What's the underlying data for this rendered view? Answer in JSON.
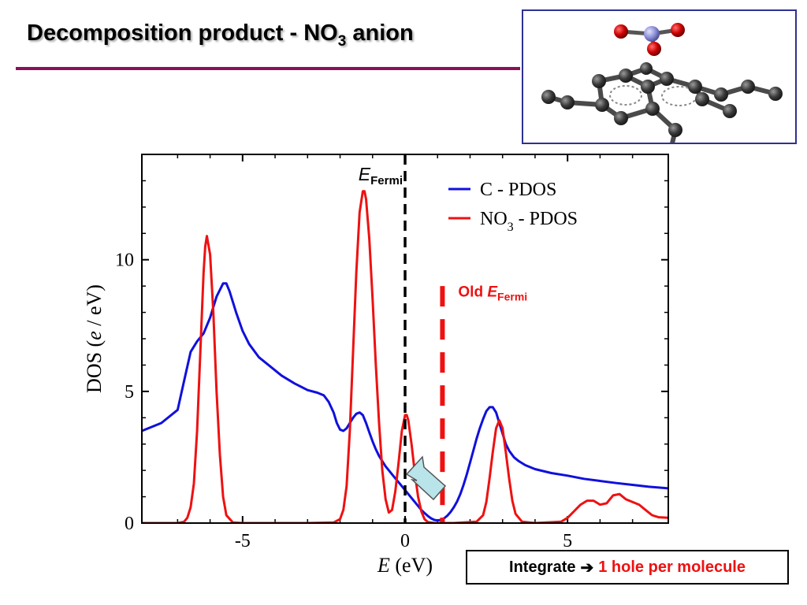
{
  "slide": {
    "title_main": "Decomposition product - NO",
    "title_sub": "3",
    "title_tail": " anion"
  },
  "molecule": {
    "atom_colors": {
      "carbon": "#3a3a3a",
      "nitrogen": "#8c8fd6",
      "oxygen": "#cc0000"
    }
  },
  "summary": {
    "lead": "Integrate",
    "arrow": "➔",
    "result": "1 hole per molecule"
  },
  "chart_data": {
    "type": "line",
    "xlabel_italic": "E",
    "xlabel_rest": " (eV)",
    "ylabel_pre": "DOS (",
    "ylabel_italic": "e",
    "ylabel_post": " / eV)",
    "xlim": [
      -8.1,
      8.1
    ],
    "ylim": [
      0,
      14
    ],
    "x_ticks": [
      -5,
      0,
      5
    ],
    "x_tick_labels": [
      "-5",
      "0",
      "5"
    ],
    "y_ticks": [
      0,
      5,
      10
    ],
    "y_tick_labels": [
      "0",
      "5",
      "10"
    ],
    "legend_position": "top-right",
    "series": [
      {
        "name_main": "C - PDOS",
        "color": "#1010dd",
        "x": [
          -8.1,
          -7.5,
          -7.0,
          -6.8,
          -6.6,
          -6.4,
          -6.2,
          -6.0,
          -5.8,
          -5.6,
          -5.5,
          -5.4,
          -5.2,
          -5.0,
          -4.8,
          -4.5,
          -4.2,
          -3.8,
          -3.4,
          -3.0,
          -2.7,
          -2.5,
          -2.35,
          -2.2,
          -2.1,
          -2.0,
          -1.9,
          -1.8,
          -1.7,
          -1.6,
          -1.5,
          -1.4,
          -1.3,
          -1.2,
          -1.1,
          -1.0,
          -0.9,
          -0.8,
          -0.7,
          -0.6,
          -0.5,
          -0.4,
          -0.3,
          -0.2,
          -0.1,
          0.0,
          0.1,
          0.2,
          0.3,
          0.4,
          0.5,
          0.6,
          0.7,
          0.8,
          0.9,
          1.0,
          1.1,
          1.2,
          1.3,
          1.4,
          1.5,
          1.6,
          1.7,
          1.8,
          1.9,
          2.0,
          2.1,
          2.2,
          2.3,
          2.4,
          2.5,
          2.6,
          2.7,
          2.8,
          2.9,
          3.0,
          3.1,
          3.2,
          3.35,
          3.5,
          3.7,
          4.0,
          4.5,
          5.0,
          5.5,
          6.0,
          6.5,
          7.0,
          7.5,
          8.1
        ],
        "y": [
          3.5,
          3.8,
          4.3,
          5.4,
          6.5,
          6.9,
          7.2,
          7.8,
          8.6,
          9.1,
          9.1,
          8.8,
          8.0,
          7.3,
          6.8,
          6.3,
          6.0,
          5.6,
          5.3,
          5.05,
          4.95,
          4.85,
          4.6,
          4.2,
          3.8,
          3.55,
          3.5,
          3.6,
          3.8,
          4.0,
          4.15,
          4.2,
          4.1,
          3.8,
          3.45,
          3.1,
          2.8,
          2.55,
          2.35,
          2.15,
          2.0,
          1.85,
          1.7,
          1.55,
          1.4,
          1.25,
          1.1,
          0.95,
          0.8,
          0.65,
          0.5,
          0.38,
          0.27,
          0.18,
          0.12,
          0.1,
          0.12,
          0.18,
          0.28,
          0.42,
          0.6,
          0.82,
          1.1,
          1.45,
          1.85,
          2.3,
          2.75,
          3.2,
          3.6,
          3.95,
          4.25,
          4.4,
          4.4,
          4.2,
          3.8,
          3.4,
          3.0,
          2.75,
          2.5,
          2.35,
          2.2,
          2.05,
          1.9,
          1.8,
          1.68,
          1.6,
          1.52,
          1.45,
          1.38,
          1.32
        ]
      },
      {
        "name_main": "NO",
        "name_sub": "3",
        "name_tail": " - PDOS",
        "color": "#ee1111",
        "x": [
          -8.1,
          -7.0,
          -6.8,
          -6.7,
          -6.6,
          -6.5,
          -6.4,
          -6.3,
          -6.2,
          -6.15,
          -6.1,
          -6.0,
          -5.9,
          -5.8,
          -5.7,
          -5.6,
          -5.5,
          -5.3,
          -5.0,
          -3.0,
          -2.2,
          -2.0,
          -1.9,
          -1.8,
          -1.7,
          -1.6,
          -1.5,
          -1.4,
          -1.3,
          -1.25,
          -1.2,
          -1.1,
          -1.0,
          -0.9,
          -0.8,
          -0.7,
          -0.6,
          -0.5,
          -0.4,
          -0.3,
          -0.2,
          -0.1,
          0.0,
          0.05,
          0.1,
          0.2,
          0.3,
          0.4,
          0.5,
          0.6,
          0.7,
          0.9,
          1.5,
          2.2,
          2.4,
          2.5,
          2.6,
          2.7,
          2.8,
          2.9,
          3.0,
          3.1,
          3.2,
          3.3,
          3.4,
          3.6,
          4.0,
          4.8,
          5.0,
          5.2,
          5.4,
          5.6,
          5.8,
          6.0,
          6.2,
          6.4,
          6.6,
          6.8,
          7.0,
          7.2,
          7.4,
          7.6,
          7.8,
          8.1
        ],
        "y": [
          0,
          0.0,
          0.05,
          0.2,
          0.6,
          1.5,
          3.5,
          6.5,
          9.5,
          10.5,
          10.9,
          10.2,
          8.0,
          5.0,
          2.6,
          1.0,
          0.3,
          0.02,
          0,
          0,
          0.02,
          0.15,
          0.5,
          1.4,
          3.5,
          6.5,
          9.5,
          11.8,
          12.6,
          12.6,
          12.3,
          10.8,
          8.5,
          6.0,
          3.8,
          2.0,
          0.9,
          0.4,
          0.5,
          1.2,
          2.3,
          3.5,
          4.1,
          4.1,
          3.9,
          3.0,
          1.9,
          1.0,
          0.45,
          0.15,
          0.04,
          0,
          0,
          0.05,
          0.3,
          0.8,
          1.7,
          2.7,
          3.6,
          3.9,
          3.6,
          2.7,
          1.7,
          0.85,
          0.35,
          0.05,
          0,
          0.05,
          0.2,
          0.45,
          0.7,
          0.85,
          0.85,
          0.7,
          0.75,
          1.05,
          1.1,
          0.9,
          0.8,
          0.7,
          0.5,
          0.3,
          0.22,
          0.2
        ]
      }
    ],
    "annotations": {
      "fermi_x": 0,
      "fermi_label_main": "E",
      "fermi_label_sub": "Fermi",
      "old_fermi_x": 1.15,
      "old_fermi_label_pre": "Old ",
      "old_fermi_label_main": "E",
      "old_fermi_label_sub": "Fermi",
      "old_fermi_color": "#ee1111",
      "arrow_color": "#b8e4ea"
    }
  }
}
